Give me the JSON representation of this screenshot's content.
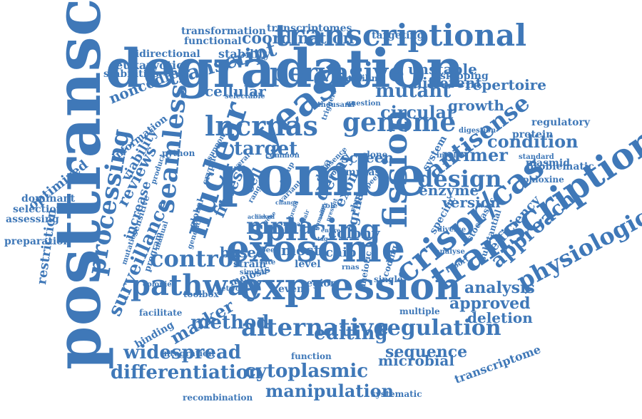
{
  "cloud": {
    "color": "#3f78b8",
    "words": [
      "posttranscriptional",
      "degradation",
      "pombe",
      "expression",
      "exosome",
      "splicing",
      "transcription",
      "crispr/cas",
      "yeast",
      "nuclear",
      "transcriptional",
      "lncrnas",
      "fission",
      "pervasive",
      "genome",
      "antisense",
      "seamless",
      "pathway",
      "mrna",
      "processing",
      "control",
      "alternative",
      "surveillance",
      "transcript",
      "regulation",
      "decay",
      "physiological",
      "mutant",
      "circular",
      "approach",
      "method",
      "design",
      "editing",
      "primer",
      "condition",
      "approved",
      "differentiation",
      "cytoplasmic",
      "widespread",
      "coordination",
      "target",
      "manipulation",
      "marker",
      "noncoding",
      "sequence",
      "analysis",
      "deletion",
      "colony",
      "reviews",
      "cellular",
      "fitness",
      "growth",
      "version",
      "screen",
      "repertoire",
      "different",
      "unstable",
      "enzyme",
      "exon",
      "transformation",
      "transcriptomes",
      "functional",
      "targeting",
      "transcriptome",
      "microbial",
      "regulatory",
      "protein",
      "plasmid",
      "efficiency",
      "based",
      "most",
      "chip",
      "cell",
      "data",
      "stability",
      "bidirectional",
      "eukaryotic",
      "stabilities",
      "skipping",
      "optimized",
      "viability",
      "increase",
      "dominant",
      "selection",
      "assessing",
      "preparation",
      "restriction",
      "information",
      "sgrna",
      "mrnas",
      "system",
      "specific",
      "level",
      "strain",
      "meiosis",
      "region",
      "event",
      "toolbox",
      "facilitate",
      "binding",
      "integration",
      "function",
      "recombination",
      "systematic",
      "problematic",
      "phloxine",
      "python",
      "mutation",
      "program",
      "sensitive",
      "global",
      "cryptic",
      "clone",
      "rbps",
      "late",
      "standard",
      "digestion",
      "selectable",
      "thousand",
      "question",
      "prevailing",
      "meiotic",
      "single",
      "coding",
      "multiple",
      "analyse",
      "substantial",
      "stochastic",
      "diverse",
      "similar",
      "network",
      "colonies",
      "manual",
      "product",
      "speed",
      "variant",
      "involve",
      "common",
      "several",
      "genetic",
      "group",
      "range",
      "role",
      "rnas",
      "absence",
      "tool",
      "peer",
      "triggers",
      "present",
      "entire",
      "report",
      "support",
      "change",
      "broad",
      "suffix",
      "pair",
      "hub",
      "domain",
      "tag",
      "gene",
      "linked",
      "reveal",
      "achieve",
      "useful"
    ]
  }
}
